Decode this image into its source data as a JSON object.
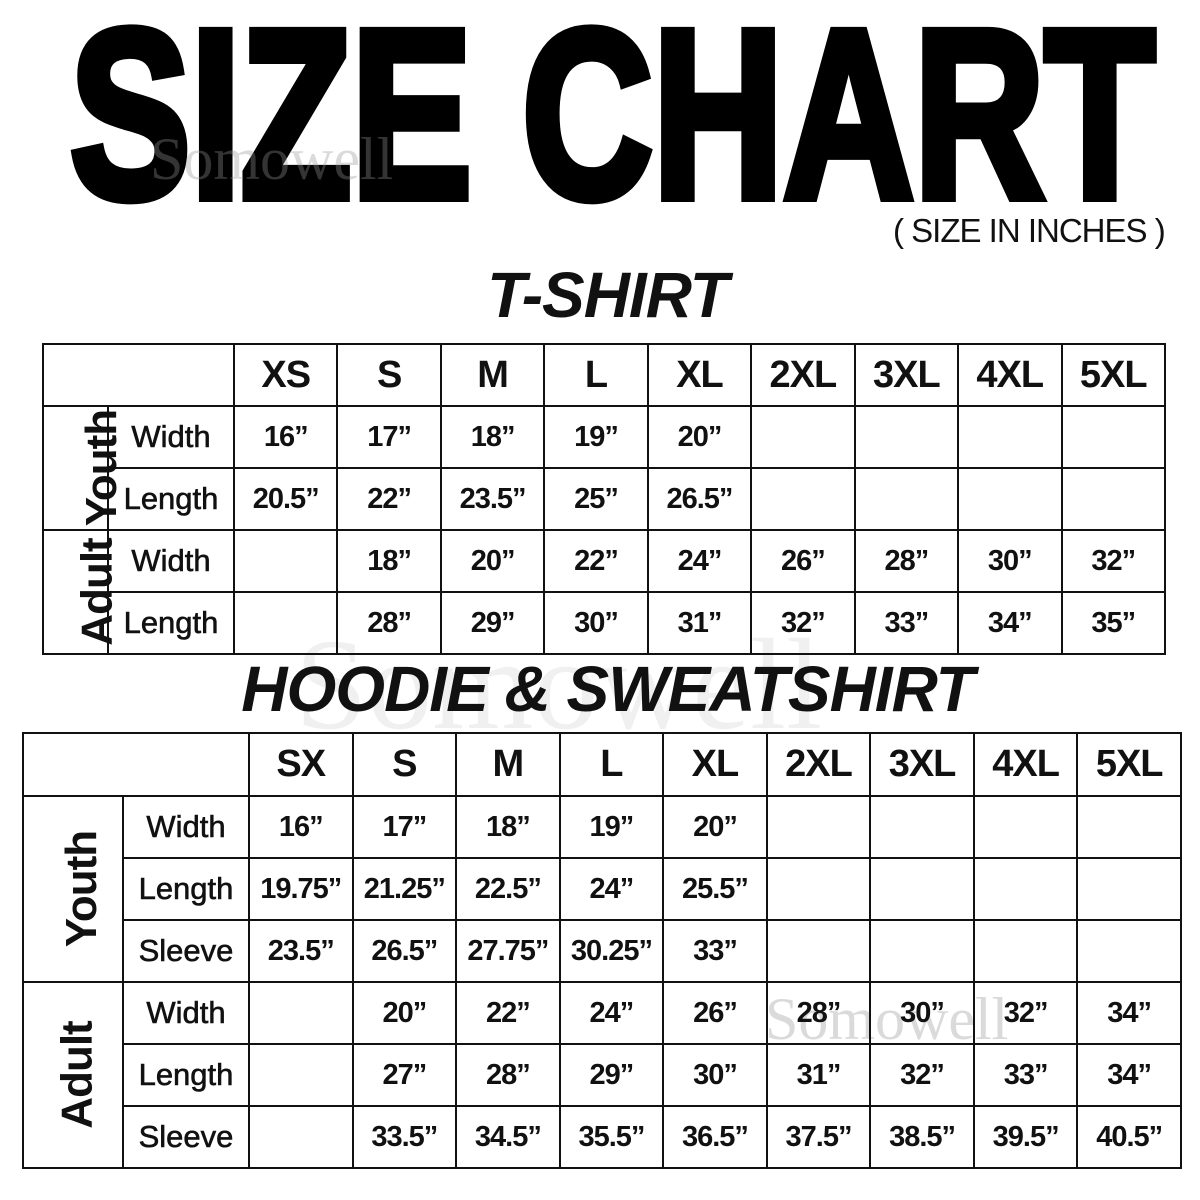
{
  "title": "SIZE CHART",
  "units_note": "( SIZE IN INCHES )",
  "watermark": "Somowell",
  "chart_data": [
    {
      "type": "table",
      "title": "T-SHIRT",
      "columns": [
        "XS",
        "S",
        "M",
        "L",
        "XL",
        "2XL",
        "3XL",
        "4XL",
        "5XL"
      ],
      "groups": [
        {
          "name": "Youth",
          "rows": [
            {
              "label": "Width",
              "values": [
                "16”",
                "17”",
                "18”",
                "19”",
                "20”",
                "",
                "",
                "",
                ""
              ]
            },
            {
              "label": "Length",
              "values": [
                "20.5”",
                "22”",
                "23.5”",
                "25”",
                "26.5”",
                "",
                "",
                "",
                ""
              ]
            }
          ]
        },
        {
          "name": "Adult",
          "rows": [
            {
              "label": "Width",
              "values": [
                "",
                "18”",
                "20”",
                "22”",
                "24”",
                "26”",
                "28”",
                "30”",
                "32”"
              ]
            },
            {
              "label": "Length",
              "values": [
                "",
                "28”",
                "29”",
                "30”",
                "31”",
                "32”",
                "33”",
                "34”",
                "35”"
              ]
            }
          ]
        }
      ]
    },
    {
      "type": "table",
      "title": "HOODIE & SWEATSHIRT",
      "columns": [
        "SX",
        "S",
        "M",
        "L",
        "XL",
        "2XL",
        "3XL",
        "4XL",
        "5XL"
      ],
      "groups": [
        {
          "name": "Youth",
          "rows": [
            {
              "label": "Width",
              "values": [
                "16”",
                "17”",
                "18”",
                "19”",
                "20”",
                "",
                "",
                "",
                ""
              ]
            },
            {
              "label": "Length",
              "values": [
                "19.75”",
                "21.25”",
                "22.5”",
                "24”",
                "25.5”",
                "",
                "",
                "",
                ""
              ]
            },
            {
              "label": "Sleeve",
              "values": [
                "23.5”",
                "26.5”",
                "27.75”",
                "30.25”",
                "33”",
                "",
                "",
                "",
                ""
              ]
            }
          ]
        },
        {
          "name": "Adult",
          "rows": [
            {
              "label": "Width",
              "values": [
                "",
                "20”",
                "22”",
                "24”",
                "26”",
                "28”",
                "30”",
                "32”",
                "34”"
              ]
            },
            {
              "label": "Length",
              "values": [
                "",
                "27”",
                "28”",
                "29”",
                "30”",
                "31”",
                "32”",
                "33”",
                "34”"
              ]
            },
            {
              "label": "Sleeve",
              "values": [
                "",
                "33.5”",
                "34.5”",
                "35.5”",
                "36.5”",
                "37.5”",
                "38.5”",
                "39.5”",
                "40.5”"
              ]
            }
          ]
        }
      ]
    }
  ]
}
